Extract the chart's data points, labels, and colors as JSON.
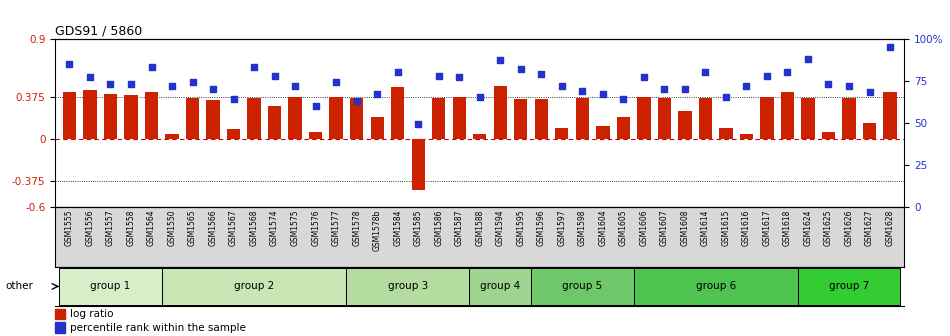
{
  "title": "GDS91 / 5860",
  "samples": [
    "GSM1555",
    "GSM1556",
    "GSM1557",
    "GSM1558",
    "GSM1564",
    "GSM1550",
    "GSM1565",
    "GSM1566",
    "GSM1567",
    "GSM1568",
    "GSM1574",
    "GSM1575",
    "GSM1576",
    "GSM1577",
    "GSM1578",
    "GSM1578b",
    "GSM1584",
    "GSM1585",
    "GSM1586",
    "GSM1587",
    "GSM1588",
    "GSM1594",
    "GSM1595",
    "GSM1596",
    "GSM1597",
    "GSM1598",
    "GSM1604",
    "GSM1605",
    "GSM1606",
    "GSM1607",
    "GSM1608",
    "GSM1614",
    "GSM1615",
    "GSM1616",
    "GSM1617",
    "GSM1618",
    "GSM1624",
    "GSM1625",
    "GSM1626",
    "GSM1627",
    "GSM1628"
  ],
  "log_ratio": [
    0.42,
    0.44,
    0.41,
    0.4,
    0.42,
    0.05,
    0.37,
    0.35,
    0.09,
    0.37,
    0.3,
    0.38,
    0.07,
    0.38,
    0.37,
    0.2,
    0.47,
    -0.45,
    0.37,
    0.38,
    0.05,
    0.48,
    0.36,
    0.36,
    0.1,
    0.37,
    0.12,
    0.2,
    0.38,
    0.37,
    0.25,
    0.37,
    0.1,
    0.05,
    0.38,
    0.42,
    0.37,
    0.07,
    0.37,
    0.15,
    0.42
  ],
  "percentile": [
    0.85,
    0.77,
    0.73,
    0.73,
    0.83,
    0.72,
    0.74,
    0.7,
    0.64,
    0.83,
    0.78,
    0.72,
    0.6,
    0.74,
    0.63,
    0.67,
    0.8,
    0.49,
    0.78,
    0.77,
    0.65,
    0.87,
    0.82,
    0.79,
    0.72,
    0.69,
    0.67,
    0.64,
    0.77,
    0.7,
    0.7,
    0.8,
    0.65,
    0.72,
    0.78,
    0.8,
    0.88,
    0.73,
    0.72,
    0.68,
    0.95
  ],
  "groups": [
    {
      "name": "group 1",
      "start": 0,
      "end": 4,
      "color": "#d8eec8"
    },
    {
      "name": "group 2",
      "start": 5,
      "end": 13,
      "color": "#c8e6b4"
    },
    {
      "name": "group 3",
      "start": 14,
      "end": 19,
      "color": "#b4dca0"
    },
    {
      "name": "group 4",
      "start": 20,
      "end": 22,
      "color": "#9ed490"
    },
    {
      "name": "group 5",
      "start": 23,
      "end": 27,
      "color": "#6ec86a"
    },
    {
      "name": "group 6",
      "start": 28,
      "end": 35,
      "color": "#4ec44e"
    },
    {
      "name": "group 7",
      "start": 36,
      "end": 40,
      "color": "#33cc33"
    }
  ],
  "bar_color": "#cc2200",
  "dot_color": "#2233cc",
  "ylim_left": [
    -0.6,
    0.9
  ],
  "ylim_right": [
    0,
    100
  ],
  "yticks_left": [
    -0.6,
    -0.375,
    0.0,
    0.375,
    0.9
  ],
  "yticks_right": [
    0,
    25,
    50,
    75,
    100
  ],
  "ytick_labels_left": [
    "-0.6",
    "-0.375",
    "0",
    "0.375",
    "0.9"
  ],
  "ytick_labels_right": [
    "0",
    "25",
    "50",
    "75",
    "100%"
  ],
  "hlines": [
    0.375,
    -0.375
  ],
  "zero_line_color": "#cc0000",
  "background_color": "#ffffff",
  "group_bar_bg": "#cccccc"
}
